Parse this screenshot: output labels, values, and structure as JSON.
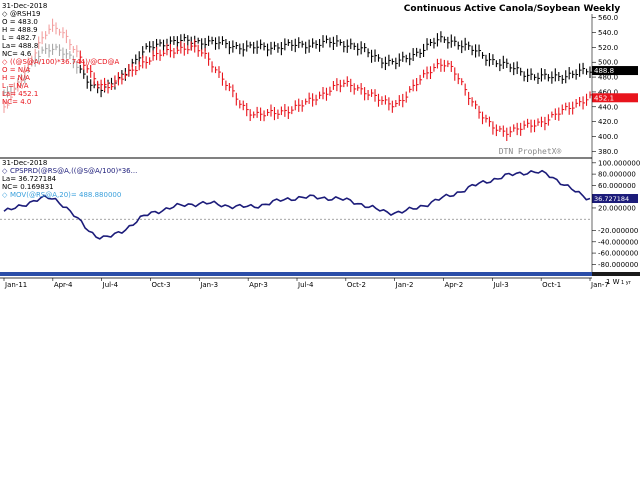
{
  "title": "Continuous Active Canola/Soybean Weekly",
  "watermark": "DTN ProphetX®",
  "colors": {
    "canola": "#000000",
    "soybean": "#e8141c",
    "soybean_early": "#f3a0a0",
    "canola_early": "#a8a8a8",
    "spread": "#1c1c7a",
    "spread_legend_text": "#1c1c7a",
    "mov_text": "#3aa0dc",
    "divider": "#000000",
    "timeline": "#2a4da8"
  },
  "top_legend": {
    "date": "31-Dec-2018",
    "canola_label": "@RSH19",
    "canola_o": "O = 483.0",
    "canola_h": "H = 488.9",
    "canola_l": "L = 482.7",
    "canola_la": "La= 488.8",
    "canola_nc": "NC= 4.6",
    "soy_label": "((@S@A/100)*36.744)/@CD@A",
    "soy_o": "O = N/A",
    "soy_h": "H = N/A",
    "soy_l": "L = N/A",
    "soy_la": "La= 452.1",
    "soy_nc": "NC= 4.0"
  },
  "bottom_legend": {
    "date": "31-Dec-2018",
    "spread_label": "CPSPRD(@RS@A,((@S@A/100)*36...",
    "spread_la": "La= 36.727184",
    "spread_nc": "NC= 0.169831",
    "mov_label": "MOV(@RS@A,20)= 488.880000"
  },
  "price_axis": {
    "ticks": [
      "560.0",
      "540.0",
      "520.0",
      "500.0",
      "480.0",
      "460.0",
      "440.0",
      "420.0",
      "400.0",
      "380.0"
    ],
    "canola_last": "488.8",
    "soy_last": "452.1"
  },
  "spread_axis": {
    "ticks": [
      "100.000000",
      "80.000000",
      "60.000000",
      "40.000000",
      "20.000000",
      "-20.000000",
      "-40.000000",
      "-60.000000",
      "-80.000000"
    ],
    "last": "36.727184"
  },
  "x_axis": {
    "labels": [
      "Jan-11",
      "Apr-4",
      "Jul-4",
      "Oct-3",
      "Jan-3",
      "Apr-3",
      "Jul-4",
      "Oct-2",
      "Jan-2",
      "Apr-2",
      "Jul-3",
      "Oct-1",
      "Jan-7"
    ],
    "scale_label": "1 W",
    "units_label": "1 yr"
  },
  "chart_data": [
    {
      "type": "line",
      "title": "Continuous Active Canola/Soybean Weekly",
      "x": [
        "Jan-11",
        "Apr-4",
        "Jul-4",
        "Oct-3",
        "Jan-3",
        "Apr-3",
        "Jul-4",
        "Oct-2",
        "Jan-2",
        "Apr-2",
        "Jul-3",
        "Oct-1",
        "Jan-7"
      ],
      "ylim": [
        375,
        565
      ],
      "series": [
        {
          "name": "@RSH19",
          "values": [
            455,
            520,
            465,
            520,
            528,
            520,
            523,
            525,
            500,
            530,
            503,
            480,
            488
          ]
        },
        {
          "name": "((@S@A/100)*36.744)/@CD@A",
          "values": [
            440,
            545,
            470,
            505,
            515,
            435,
            440,
            470,
            445,
            497,
            413,
            420,
            452
          ]
        }
      ]
    },
    {
      "type": "line",
      "x": [
        "Jan-11",
        "Apr-4",
        "Jul-4",
        "Oct-3",
        "Jan-3",
        "Apr-3",
        "Jul-4",
        "Oct-2",
        "Jan-2",
        "Apr-2",
        "Jul-3",
        "Oct-1",
        "Jan-7"
      ],
      "ylim": [
        -90,
        105
      ],
      "series": [
        {
          "name": "CPSPRD(@RS@A,((@S@A/100)*36...",
          "values": [
            14,
            36,
            -32,
            10,
            28,
            22,
            38,
            34,
            12,
            38,
            70,
            82,
            36.7
          ]
        }
      ]
    }
  ]
}
